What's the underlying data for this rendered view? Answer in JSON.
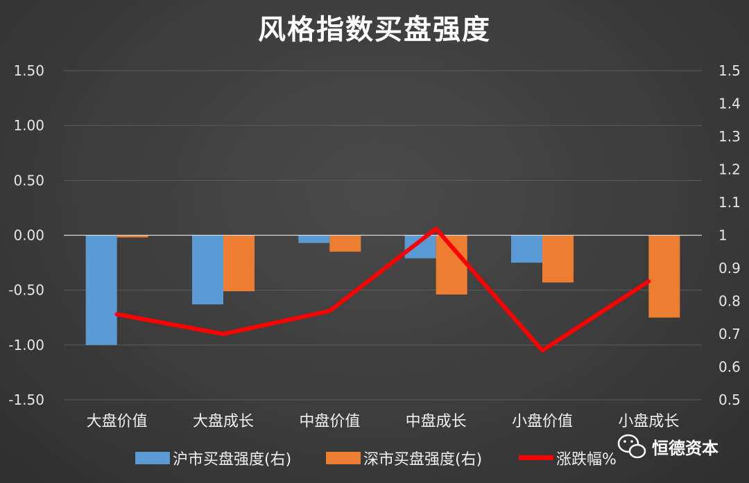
{
  "chart_data": {
    "type": "bar",
    "title": "风格指数买盘强度",
    "categories": [
      "大盘价值",
      "大盘成长",
      "中盘价值",
      "中盘成长",
      "小盘价值",
      "小盘成长"
    ],
    "series": [
      {
        "name": "沪市买盘强度(右)",
        "kind": "bar",
        "axis": "left",
        "color": "#5b9bd5",
        "values": [
          -1.0,
          -0.63,
          -0.07,
          -0.21,
          -0.25,
          0.0
        ]
      },
      {
        "name": "深市买盘强度(右)",
        "kind": "bar",
        "axis": "left",
        "color": "#ed7d31",
        "values": [
          -0.02,
          -0.51,
          -0.15,
          -0.54,
          -0.43,
          -0.75
        ]
      },
      {
        "name": "涨跌幅%",
        "kind": "line",
        "axis": "right",
        "color": "#ff0000",
        "values": [
          0.76,
          0.7,
          0.77,
          1.02,
          0.65,
          0.86
        ]
      }
    ],
    "y_left": {
      "min": -1.5,
      "max": 1.5,
      "ticks": [
        "1.50",
        "1.00",
        "0.50",
        "0.00",
        "-0.50",
        "-1.00",
        "-1.50"
      ]
    },
    "y_right": {
      "min": 0.5,
      "max": 1.5,
      "ticks": [
        "1.5",
        "1.4",
        "1.3",
        "1.2",
        "1.1",
        "1",
        "0.9",
        "0.8",
        "0.7",
        "0.6",
        "0.5"
      ]
    },
    "grid": true,
    "legend": "bottom"
  },
  "watermark": {
    "text": "恒德资本",
    "icon": "wechat-icon"
  }
}
